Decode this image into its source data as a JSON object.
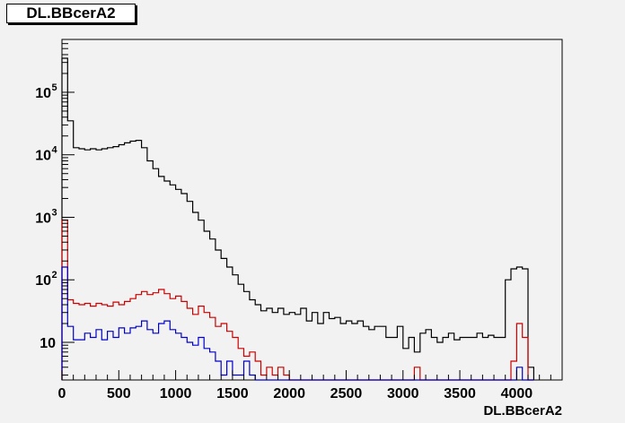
{
  "title": "DL.BBcerA2",
  "colors": {
    "background": "#f2f2f2",
    "frame": "#000000",
    "black_series": "#000000",
    "red_series": "#cc0000",
    "blue_series": "#0000cc"
  },
  "chart_data": {
    "type": "histogram-step",
    "title": "DL.BBcerA2",
    "xlabel": "DL.BBcerA2",
    "ylabel": "",
    "xlim": [
      0,
      4400
    ],
    "ylim": [
      2.5,
      700000
    ],
    "yscale": "log",
    "grid": false,
    "legend": "none",
    "bin_width": 50,
    "x_ticks": [
      "0",
      "500",
      "1000",
      "1500",
      "2000",
      "2500",
      "3000",
      "3500",
      "4000"
    ],
    "y_ticks": [
      {
        "label": "10",
        "mantissa": "10",
        "exponent": "",
        "value": 10
      },
      {
        "label": "10^2",
        "mantissa": "10",
        "exponent": "2",
        "value": 100
      },
      {
        "label": "10^3",
        "mantissa": "10",
        "exponent": "3",
        "value": 1000
      },
      {
        "label": "10^4",
        "mantissa": "10",
        "exponent": "4",
        "value": 10000
      },
      {
        "label": "10^5",
        "mantissa": "10",
        "exponent": "5",
        "value": 100000
      }
    ],
    "series": [
      {
        "color": "#000000",
        "x": [
          0,
          50,
          100,
          150,
          200,
          250,
          300,
          350,
          400,
          450,
          500,
          550,
          600,
          650,
          700,
          750,
          800,
          850,
          900,
          950,
          1000,
          1050,
          1100,
          1150,
          1200,
          1250,
          1300,
          1350,
          1400,
          1450,
          1500,
          1550,
          1600,
          1650,
          1700,
          1750,
          1800,
          1850,
          1900,
          1950,
          2000,
          2050,
          2100,
          2150,
          2200,
          2250,
          2300,
          2350,
          2400,
          2450,
          2500,
          2550,
          2600,
          2650,
          2700,
          2750,
          2800,
          2850,
          2900,
          2950,
          3000,
          3050,
          3100,
          3150,
          3200,
          3250,
          3300,
          3350,
          3400,
          3450,
          3500,
          3550,
          3600,
          3650,
          3700,
          3750,
          3800,
          3850,
          3900,
          3950,
          4000,
          4050,
          4100
        ],
        "y": [
          350000,
          35000,
          13000,
          12500,
          12000,
          12500,
          12000,
          12500,
          13000,
          13500,
          14500,
          15500,
          16500,
          17000,
          13000,
          8000,
          6000,
          4500,
          3800,
          3300,
          2800,
          2400,
          1800,
          1200,
          900,
          600,
          450,
          300,
          220,
          160,
          120,
          85,
          65,
          48,
          40,
          32,
          35,
          30,
          35,
          28,
          30,
          28,
          35,
          22,
          30,
          20,
          30,
          24,
          25,
          20,
          22,
          20,
          22,
          18,
          16,
          18,
          18,
          12,
          12,
          18,
          8,
          12,
          7,
          14,
          16,
          12,
          10,
          12,
          14,
          11,
          12,
          12,
          12,
          14,
          12,
          13,
          12,
          12,
          100,
          150,
          160,
          150,
          4
        ]
      },
      {
        "color": "#cc0000",
        "x": [
          0,
          50,
          100,
          150,
          200,
          250,
          300,
          350,
          400,
          450,
          500,
          550,
          600,
          650,
          700,
          750,
          800,
          850,
          900,
          950,
          1000,
          1050,
          1100,
          1150,
          1200,
          1250,
          1300,
          1350,
          1400,
          1450,
          1500,
          1550,
          1600,
          1650,
          1700,
          1750,
          1800,
          1850,
          1900,
          1950,
          2000,
          2050,
          2100,
          2150,
          2200,
          2250,
          2300,
          2350,
          2400,
          2450,
          2500,
          2550,
          2600,
          2650,
          2700,
          2750,
          2800,
          2850,
          2900,
          2950,
          3000,
          3050,
          3100,
          3150,
          3200,
          3250,
          3300,
          3350,
          3400,
          3450,
          3500,
          3550,
          3600,
          3650,
          3700,
          3750,
          3800,
          3850,
          3900,
          3950,
          4000,
          4050,
          4100
        ],
        "y": [
          900,
          48,
          42,
          40,
          42,
          38,
          42,
          40,
          38,
          44,
          40,
          45,
          50,
          58,
          65,
          58,
          62,
          70,
          60,
          50,
          55,
          45,
          35,
          28,
          38,
          30,
          25,
          18,
          20,
          15,
          12,
          8,
          6,
          7,
          5,
          3,
          4,
          3,
          4,
          3,
          2,
          2,
          2,
          2,
          2,
          2,
          2,
          2,
          2,
          2,
          2,
          2,
          2,
          2,
          2,
          2,
          2,
          2,
          2,
          2,
          2,
          2,
          4,
          2,
          2,
          2,
          2,
          2,
          2,
          2,
          2,
          2,
          2,
          2,
          2,
          2,
          2,
          2,
          2,
          5,
          20,
          12,
          2
        ]
      },
      {
        "color": "#0000cc",
        "x": [
          0,
          50,
          100,
          150,
          200,
          250,
          300,
          350,
          400,
          450,
          500,
          550,
          600,
          650,
          700,
          750,
          800,
          850,
          900,
          950,
          1000,
          1050,
          1100,
          1150,
          1200,
          1250,
          1300,
          1350,
          1400,
          1450,
          1500,
          1550,
          1600,
          1650,
          1700,
          1750,
          1800,
          1850,
          1900,
          1950,
          2000,
          2050,
          2100,
          2150,
          2200,
          2250,
          2300,
          2350,
          2400,
          2450,
          2500,
          2550,
          2600,
          2650,
          2700,
          2750,
          2800,
          2850,
          2900,
          2950,
          3000,
          3050,
          3100,
          3150,
          3200,
          3250,
          3300,
          3350,
          3400,
          3450,
          3500,
          3550,
          3600,
          3650,
          3700,
          3750,
          3800,
          3850,
          3900,
          3950,
          4000,
          4050,
          4100
        ],
        "y": [
          160,
          18,
          11,
          11,
          14,
          12,
          16,
          11,
          15,
          12,
          17,
          14,
          17,
          18,
          22,
          16,
          14,
          20,
          22,
          16,
          14,
          12,
          10,
          9,
          12,
          8,
          7,
          5,
          3,
          5,
          3,
          3,
          5,
          3,
          2,
          2,
          2,
          2,
          2,
          2,
          2,
          2,
          2,
          2,
          2,
          2,
          2,
          2,
          2,
          2,
          2,
          2,
          2,
          2,
          2,
          2,
          2,
          2,
          2,
          2,
          2,
          2,
          2,
          2,
          2,
          2,
          2,
          2,
          2,
          2,
          2,
          2,
          2,
          2,
          2,
          2,
          2,
          2,
          2,
          2,
          4,
          2,
          2
        ]
      }
    ]
  }
}
